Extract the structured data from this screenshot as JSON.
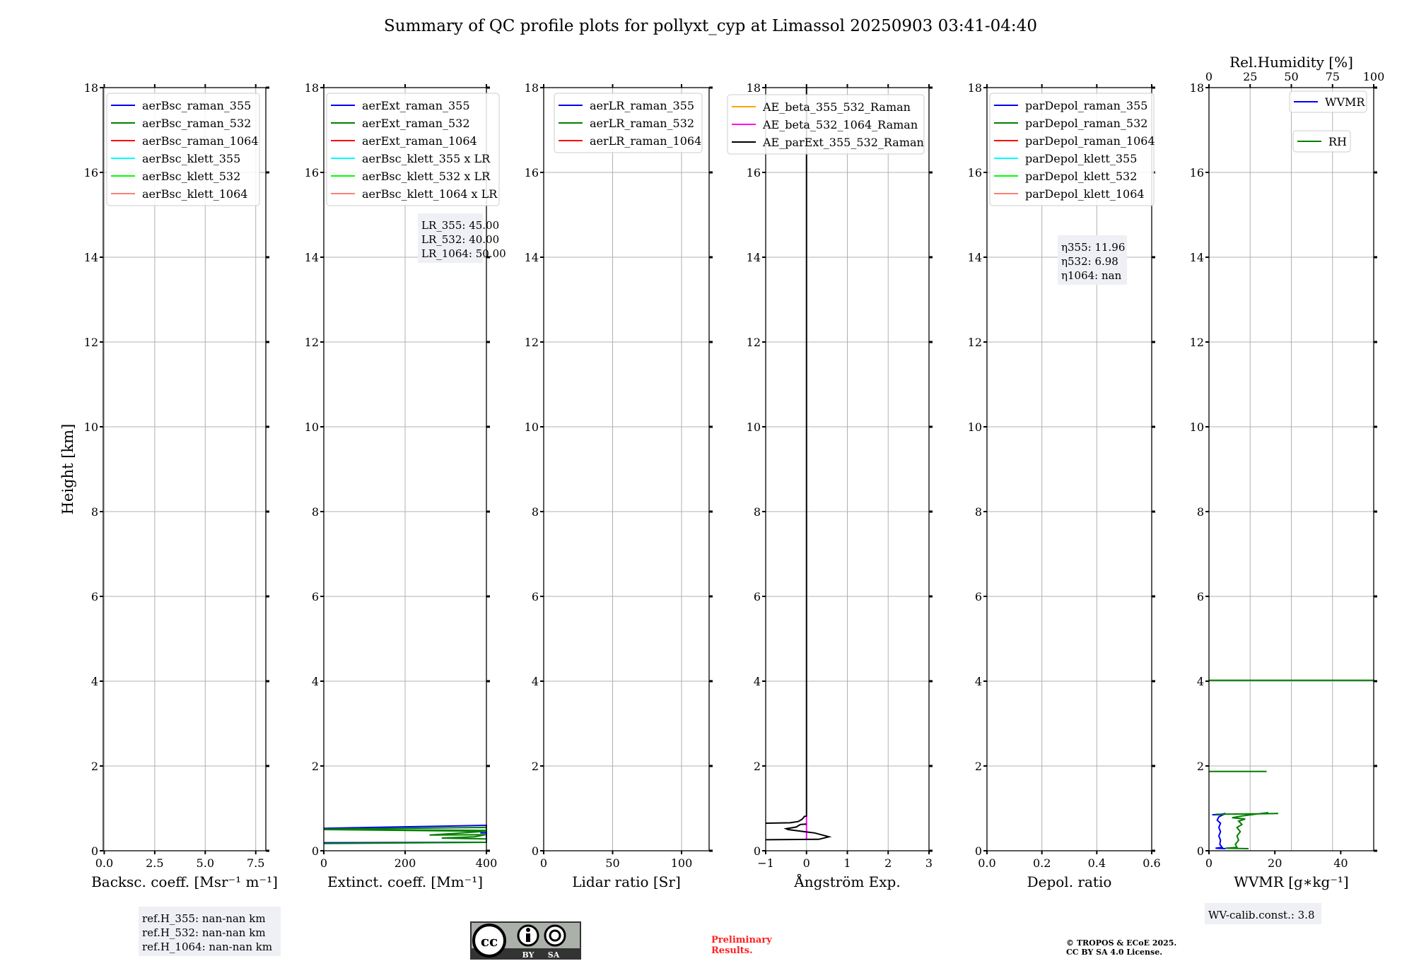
{
  "title": "Summary of QC profile plots for pollyxt_cyp at Limassol 20250903 03:41-04:40",
  "chart_data": [
    {
      "type": "line",
      "ylabel": "Height [km]",
      "xlabel": "Backsc. coeff. [Msr⁻¹ m⁻¹]",
      "xlim": [
        -0.05,
        8
      ],
      "ylim": [
        0,
        18
      ],
      "xticks": [
        0,
        2.5,
        5,
        7.5
      ],
      "xtick_labels": [
        "0.0",
        "2.5",
        "5.0",
        "7.5"
      ],
      "yticks": [
        0,
        2,
        4,
        6,
        8,
        10,
        12,
        14,
        16,
        18
      ],
      "grid": true,
      "legend_placement": "top-left",
      "legend": [
        {
          "label": "aerBsc_raman_355",
          "color": "#0000ff"
        },
        {
          "label": "aerBsc_raman_532",
          "color": "#008000"
        },
        {
          "label": "aerBsc_raman_1064",
          "color": "#ff0000"
        },
        {
          "label": "aerBsc_klett_355",
          "color": "#00ffff"
        },
        {
          "label": "aerBsc_klett_532",
          "color": "#00ff00"
        },
        {
          "label": "aerBsc_klett_1064",
          "color": "#fa8072"
        }
      ],
      "series": [],
      "textbox": [
        "ref.H_355: nan-nan km",
        "ref.H_532: nan-nan km",
        "ref.H_1064: nan-nan km"
      ]
    },
    {
      "type": "line",
      "xlabel": "Extinct. coeff. [Mm⁻¹]",
      "xlim": [
        0,
        400
      ],
      "ylim": [
        0,
        18
      ],
      "xticks": [
        0,
        200,
        400
      ],
      "xtick_labels": [
        "0",
        "200",
        "400"
      ],
      "yticks": [
        0,
        2,
        4,
        6,
        8,
        10,
        12,
        14,
        16,
        18
      ],
      "grid": true,
      "legend_placement": "top-left",
      "legend": [
        {
          "label": "aerExt_raman_355",
          "color": "#0000ff"
        },
        {
          "label": "aerExt_raman_532",
          "color": "#008000"
        },
        {
          "label": "aerExt_raman_1064",
          "color": "#ff0000"
        },
        {
          "label": "aerBsc_klett_355 x LR",
          "color": "#00ffff"
        },
        {
          "label": "aerBsc_klett_532 x LR",
          "color": "#00ff00"
        },
        {
          "label": "aerBsc_klett_1064 x LR",
          "color": "#fa8072"
        }
      ],
      "series": [
        {
          "name": "aerExt_raman_355",
          "color": "#0000ff",
          "points": [
            [
              0,
              0.53
            ],
            [
              400,
              0.6
            ],
            [
              400,
              0.42
            ],
            [
              385,
              0.42
            ],
            [
              400,
              0.42
            ],
            [
              400,
              0.2
            ],
            [
              0,
              0.19
            ]
          ]
        },
        {
          "name": "aerExt_raman_532",
          "color": "#008000",
          "points": [
            [
              0,
              0.51
            ],
            [
              400,
              0.55
            ],
            [
              400,
              0.48
            ],
            [
              0,
              0.5
            ],
            [
              400,
              0.46
            ],
            [
              260,
              0.37
            ],
            [
              400,
              0.38
            ],
            [
              370,
              0.33
            ],
            [
              290,
              0.3
            ],
            [
              400,
              0.28
            ],
            [
              400,
              0.2
            ],
            [
              0,
              0.17
            ]
          ]
        }
      ],
      "textbox": [
        "LR_355: 45.00",
        "LR_532: 40.00",
        "LR_1064: 50.00"
      ]
    },
    {
      "type": "line",
      "xlabel": "Lidar ratio [Sr]",
      "xlim": [
        0,
        120
      ],
      "ylim": [
        0,
        18
      ],
      "xticks": [
        0,
        50,
        100
      ],
      "xtick_labels": [
        "0",
        "50",
        "100"
      ],
      "yticks": [
        0,
        2,
        4,
        6,
        8,
        10,
        12,
        14,
        16,
        18
      ],
      "grid": true,
      "legend_placement": "top-left",
      "legend": [
        {
          "label": "aerLR_raman_355",
          "color": "#0000ff"
        },
        {
          "label": "aerLR_raman_532",
          "color": "#008000"
        },
        {
          "label": "aerLR_raman_1064",
          "color": "#ff0000"
        }
      ],
      "series": []
    },
    {
      "type": "line",
      "xlabel": "Ångström Exp.",
      "xlim": [
        -1,
        3
      ],
      "ylim": [
        0,
        18
      ],
      "xticks": [
        -1,
        0,
        1,
        2,
        3
      ],
      "xtick_labels": [
        "−1",
        "0",
        "1",
        "2",
        "3"
      ],
      "yticks": [
        0,
        2,
        4,
        6,
        8,
        10,
        12,
        14,
        16,
        18
      ],
      "grid": true,
      "legend_placement": "top-left",
      "legend": [
        {
          "label": "AE_beta_355_532_Raman",
          "color": "#ffa500"
        },
        {
          "label": "AE_beta_532_1064_Raman",
          "color": "#ff00ff"
        },
        {
          "label": "AE_parExt_355_532_Raman",
          "color": "#000000"
        }
      ],
      "series": [
        {
          "name": "AE_beta_532_1064_Raman",
          "color": "#ff00ff",
          "points": [
            [
              0,
              0.25
            ],
            [
              0,
              0.82
            ]
          ]
        },
        {
          "name": "AE_parExt_355_532_Raman",
          "color": "#000000",
          "points": [
            [
              0,
              18
            ],
            [
              0,
              0.82
            ],
            [
              -0.05,
              0.81
            ],
            [
              -0.1,
              0.75
            ],
            [
              -0.2,
              0.69
            ],
            [
              -0.4,
              0.66
            ],
            [
              -1,
              0.65
            ]
          ]
        },
        {
          "name": "AE_parExt_355_532_Raman",
          "color": "#000000",
          "points": [
            [
              0,
              0.63
            ],
            [
              -0.15,
              0.62
            ],
            [
              -0.25,
              0.56
            ],
            [
              -0.5,
              0.52
            ],
            [
              -0.45,
              0.5
            ],
            [
              0.2,
              0.42
            ],
            [
              0.55,
              0.33
            ],
            [
              0.3,
              0.27
            ],
            [
              -1,
              0.26
            ]
          ]
        }
      ]
    },
    {
      "type": "line",
      "xlabel": "Depol. ratio",
      "xlim": [
        0,
        0.6
      ],
      "ylim": [
        0,
        18
      ],
      "xticks": [
        0,
        0.2,
        0.4,
        0.6
      ],
      "xtick_labels": [
        "0.0",
        "0.2",
        "0.4",
        "0.6"
      ],
      "yticks": [
        0,
        2,
        4,
        6,
        8,
        10,
        12,
        14,
        16,
        18
      ],
      "grid": true,
      "legend_placement": "top-left",
      "legend": [
        {
          "label": "parDepol_raman_355",
          "color": "#0000ff"
        },
        {
          "label": "parDepol_raman_532",
          "color": "#008000"
        },
        {
          "label": "parDepol_raman_1064",
          "color": "#ff0000"
        },
        {
          "label": "parDepol_klett_355",
          "color": "#00ffff"
        },
        {
          "label": "parDepol_klett_532",
          "color": "#00ff00"
        },
        {
          "label": "parDepol_klett_1064",
          "color": "#fa8072"
        }
      ],
      "series": [],
      "textbox": [
        "η355: 11.96",
        "η532: 6.98",
        "η1064: nan"
      ]
    },
    {
      "type": "line",
      "xlabel": "WVMR [g∗kg⁻¹]",
      "xlim": [
        0,
        50
      ],
      "ylim": [
        0,
        18
      ],
      "xticks": [
        0,
        20,
        40
      ],
      "xtick_labels": [
        "0",
        "20",
        "40"
      ],
      "yticks": [
        0,
        2,
        4,
        6,
        8,
        10,
        12,
        14,
        16,
        18
      ],
      "top_xlabel": "Rel.Humidity [%]",
      "top_xlim": [
        0,
        100
      ],
      "top_xticks": [
        0,
        25,
        50,
        75,
        100
      ],
      "top_xtick_labels": [
        "0",
        "25",
        "50",
        "75",
        "100"
      ],
      "grid": true,
      "legend_placement": "top-right",
      "legend": [
        {
          "label": "WVMR",
          "color": "#0000ff"
        },
        {
          "label": "RH",
          "color": "#008000"
        }
      ],
      "series": [
        {
          "name": "WVMR",
          "color": "#0000ff",
          "axis": "bottom",
          "points": [
            [
              1,
              0.85
            ],
            [
              3,
              0.85
            ],
            [
              5,
              0.88
            ],
            [
              3,
              0.8
            ],
            [
              2.5,
              0.72
            ],
            [
              3.5,
              0.65
            ],
            [
              3,
              0.55
            ],
            [
              3.5,
              0.45
            ],
            [
              3,
              0.35
            ],
            [
              3.5,
              0.25
            ],
            [
              3.3,
              0.15
            ],
            [
              4,
              0.08
            ],
            [
              2,
              0.06
            ],
            [
              5,
              0.05
            ]
          ]
        },
        {
          "name": "RH",
          "color": "#008000",
          "axis": "top",
          "points": [
            [
              0,
              4.02
            ],
            [
              100,
              4.02
            ]
          ]
        },
        {
          "name": "RH",
          "color": "#008000",
          "axis": "top",
          "points": [
            [
              0,
              1.87
            ],
            [
              35,
              1.87
            ]
          ]
        },
        {
          "name": "RH",
          "color": "#008000",
          "axis": "top",
          "points": [
            [
              4,
              0.86
            ],
            [
              42,
              0.88
            ],
            [
              30,
              0.87
            ],
            [
              36,
              0.9
            ],
            [
              20,
              0.82
            ],
            [
              14,
              0.78
            ],
            [
              22,
              0.75
            ],
            [
              18,
              0.7
            ],
            [
              20,
              0.62
            ],
            [
              17,
              0.55
            ],
            [
              19,
              0.45
            ],
            [
              17,
              0.35
            ],
            [
              18,
              0.25
            ],
            [
              16,
              0.15
            ],
            [
              17,
              0.08
            ],
            [
              10,
              0.06
            ],
            [
              24,
              0.05
            ]
          ]
        }
      ],
      "textbox": [
        "WV-calib.const.: 3.8"
      ]
    }
  ],
  "footer": {
    "cc_logo": {
      "cc": "cc",
      "by": "BY",
      "sa": "SA"
    },
    "preliminary": [
      "Preliminary",
      "Results."
    ],
    "copyright": [
      "© TROPOS & ECoE 2025.",
      "CC BY SA 4.0 License."
    ],
    "preliminary_color": "#ff2020"
  }
}
